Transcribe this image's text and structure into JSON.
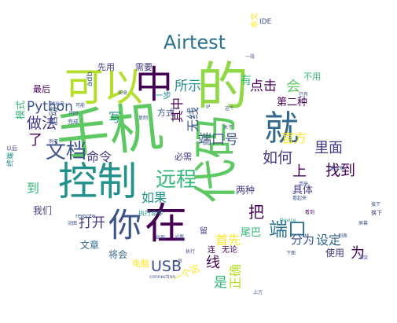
{
  "words": [
    {
      "text": "的",
      "color": "#8fd744"
    },
    {
      "text": "手机",
      "color": "#5ec962"
    },
    {
      "text": "控制",
      "color": "#21918c"
    },
    {
      "text": "可以",
      "color": "#b5de2b"
    },
    {
      "text": "中",
      "color": "#440154"
    },
    {
      "text": "就",
      "color": "#31688e"
    },
    {
      "text": "代码",
      "color": "#5ec962"
    },
    {
      "text": "在",
      "color": "#440154"
    },
    {
      "text": "你",
      "color": "#3b528b"
    },
    {
      "text": "Airtest",
      "color": "#2c728e"
    },
    {
      "text": "远程",
      "color": "#35b779"
    },
    {
      "text": "文档",
      "color": "#3b528b"
    },
    {
      "text": "端口",
      "color": "#2c728e"
    },
    {
      "text": "Python",
      "color": "#3b528b"
    },
    {
      "text": "USB",
      "color": "#3b528b"
    },
    {
      "text": "做法",
      "color": "#443983"
    },
    {
      "text": "如何",
      "color": "#443983"
    },
    {
      "text": "找到",
      "color": "#440154"
    },
    {
      "text": "里面",
      "color": "#443983"
    },
    {
      "text": "端口号",
      "color": "#3b528b"
    },
    {
      "text": "官方",
      "color": "#fde725"
    },
    {
      "text": "点击",
      "color": "#440154"
    },
    {
      "text": "所示",
      "color": "#21918c"
    },
    {
      "text": "命令",
      "color": "#443983"
    },
    {
      "text": "如果",
      "color": "#21918c"
    },
    {
      "text": "打开",
      "color": "#443983"
    },
    {
      "text": "分为",
      "color": "#3b528b"
    },
    {
      "text": "设定",
      "color": "#31688e"
    },
    {
      "text": "为",
      "color": "#440154"
    },
    {
      "text": "把",
      "color": "#440154"
    },
    {
      "text": "首先",
      "color": "#fde725"
    },
    {
      "text": "是",
      "color": "#35b779"
    },
    {
      "text": "正确",
      "color": "#b5de2b"
    },
    {
      "text": "无线",
      "color": "#3b528b"
    },
    {
      "text": "其中",
      "color": "#440154"
    },
    {
      "text": "了",
      "color": "#440154"
    },
    {
      "text": "线",
      "color": "#440154"
    },
    {
      "text": "会",
      "color": "#5ec962"
    },
    {
      "text": "写",
      "color": "#21918c"
    },
    {
      "text": "到",
      "color": "#35b779"
    },
    {
      "text": "有",
      "color": "#35b779"
    },
    {
      "text": "上",
      "color": "#440154"
    },
    {
      "text": "IDE",
      "color": "#3b528b"
    },
    {
      "text": "本文",
      "color": "#fde725"
    },
    {
      "text": "需要",
      "color": "#443983"
    },
    {
      "text": "先用",
      "color": "#443983"
    },
    {
      "text": "最后",
      "color": "#440154"
    },
    {
      "text": "模式",
      "color": "#35b779"
    },
    {
      "text": "启动",
      "color": "#3b528b"
    },
    {
      "text": "方式",
      "color": "#3b528b"
    },
    {
      "text": "一步",
      "color": "#21918c"
    },
    {
      "text": "第二种",
      "color": "#440154"
    },
    {
      "text": "两种",
      "color": "#443983"
    },
    {
      "text": "具体",
      "color": "#443983"
    },
    {
      "text": "使用",
      "color": "#443983"
    },
    {
      "text": "尾巴",
      "color": "#35b779"
    },
    {
      "text": "一个这",
      "color": "#fde725"
    },
    {
      "text": "文章",
      "color": "#31688e"
    },
    {
      "text": "将会",
      "color": "#31688e"
    },
    {
      "text": "电脑",
      "color": "#fde725"
    },
    {
      "text": "我们",
      "color": "#443983"
    },
    {
      "text": "必需",
      "color": "#443983"
    },
    {
      "text": "不用",
      "color": "#35b779"
    },
    {
      "text": "adb",
      "color": "#3b528b"
    },
    {
      "text": "remote",
      "color": "#3b528b"
    },
    {
      "text": "connection",
      "color": "#3b528b"
    },
    {
      "text": "Device",
      "color": "#21918c"
    },
    {
      "text": "无论",
      "color": "#440154"
    },
    {
      "text": "连",
      "color": "#440154"
    },
    {
      "text": "留",
      "color": "#443983"
    },
    {
      "text": "以后",
      "color": "#443983"
    },
    {
      "text": "终端",
      "color": "#21918c"
    },
    {
      "text": "换下",
      "color": "#443983"
    },
    {
      "text": "冲突",
      "color": "#3b528b"
    },
    {
      "text": "完成",
      "color": "#3b528b"
    },
    {
      "text": "下面",
      "color": "#3b528b"
    },
    {
      "text": "执行",
      "color": "#3b528b"
    },
    {
      "text": "输入框",
      "color": "#3b528b"
    },
    {
      "text": "可能",
      "color": "#3b528b"
    },
    {
      "text": "看到",
      "color": "#440154"
    },
    {
      "text": "上方",
      "color": "#3b528b"
    },
    {
      "text": "出现",
      "color": "#3b528b"
    },
    {
      "text": "弹出来",
      "color": "#3b528b"
    },
    {
      "text": "设置",
      "color": "#3b528b"
    },
    {
      "text": "例子",
      "color": "#3b528b"
    },
    {
      "text": "用来",
      "color": "#3b528b"
    },
    {
      "text": "这个",
      "color": "#3b528b"
    },
    {
      "text": "复制",
      "color": "#3b528b"
    },
    {
      "text": "列表",
      "color": "#3b528b"
    },
    {
      "text": "屏幕",
      "color": "#3b528b"
    },
    {
      "text": "同时",
      "color": "#3b528b"
    },
    {
      "text": "已有",
      "color": "#3b528b"
    },
    {
      "text": "安卓",
      "color": "#3b528b"
    },
    {
      "text": "动图",
      "color": "#3b528b"
    },
    {
      "text": "IP",
      "color": "#3b528b"
    },
    {
      "text": "关于",
      "color": "#3b528b"
    },
    {
      "text": "一段",
      "color": "#3b528b"
    },
    {
      "text": "看起来",
      "color": "#3b528b"
    },
    {
      "text": "执行命令",
      "color": "#21918c"
    },
    {
      "text": "一台",
      "color": "#3b528b"
    },
    {
      "text": "接下",
      "color": "#3b528b"
    }
  ]
}
